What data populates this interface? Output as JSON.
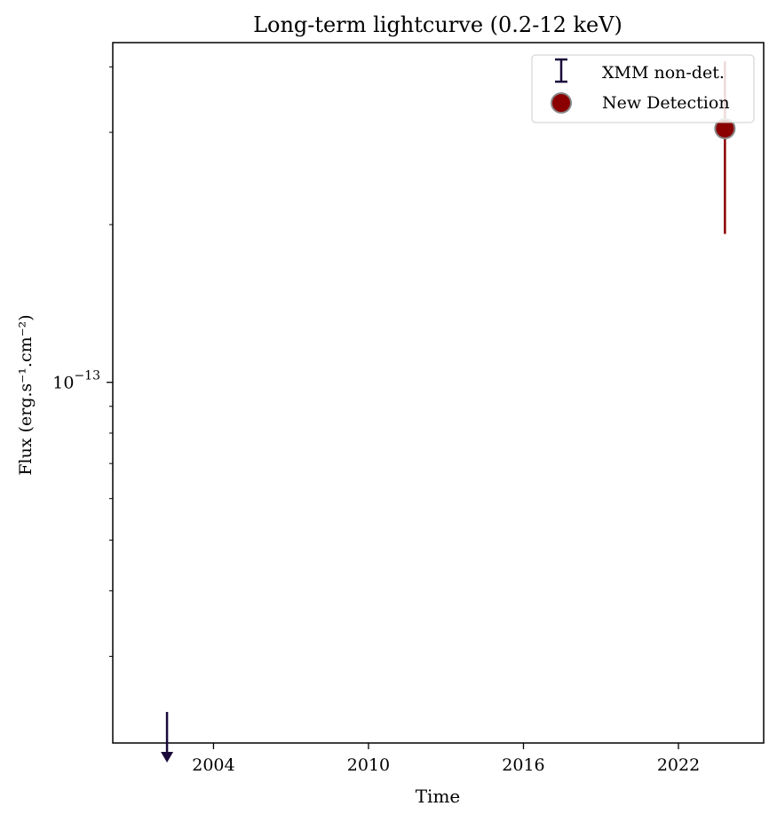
{
  "chart_data": {
    "type": "scatter",
    "title": "Long-term lightcurve (0.2-12 keV)",
    "xlabel": "Time",
    "ylabel": "Flux (erg.s⁻¹.cm⁻²)",
    "y_scale": "log",
    "grid": false,
    "legend_position": "top-right",
    "x_ticks": [
      {
        "value": 2004,
        "label": "2004"
      },
      {
        "value": 2010,
        "label": "2010"
      },
      {
        "value": 2016,
        "label": "2016"
      },
      {
        "value": 2022,
        "label": "2022"
      }
    ],
    "y_ticks": [
      {
        "value": 1e-13,
        "base": "10",
        "exp": "−13"
      }
    ],
    "x_range": [
      2000.1,
      2025.3
    ],
    "y_range": [
      2.05e-14,
      4.45e-13
    ],
    "series": [
      {
        "name": "XMM non-det.",
        "kind": "upper_limit",
        "color": "#1a0a3a",
        "points": [
          {
            "x": 2002.2,
            "y": 2.35e-14
          }
        ]
      },
      {
        "name": "New Detection",
        "kind": "detection",
        "color": "#8b0000",
        "edge_color": "#888888",
        "points": [
          {
            "x": 2023.8,
            "y": 3.05e-13,
            "y_low": 1.92e-13,
            "y_high": 4.1e-13
          }
        ]
      }
    ]
  }
}
